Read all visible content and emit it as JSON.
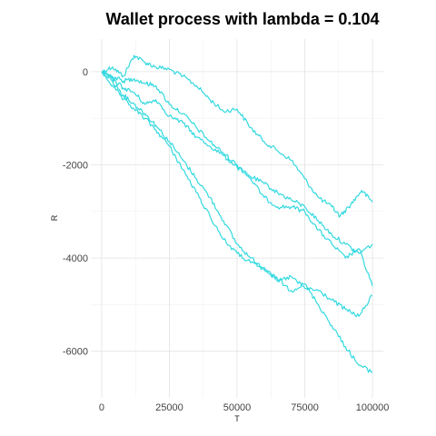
{
  "chart_data": {
    "type": "line",
    "title": "Wallet process with lambda =  0.104",
    "xlabel": "T",
    "ylabel": "R",
    "xlim": [
      -4000,
      104000
    ],
    "ylim": [
      -7000,
      700
    ],
    "xticks": [
      0,
      25000,
      50000,
      75000,
      100000
    ],
    "xtick_labels": [
      "0",
      "25000",
      "50000",
      "75000",
      "100000"
    ],
    "yticks": [
      0,
      -2000,
      -4000,
      -6000
    ],
    "ytick_labels": [
      "0",
      "-2000",
      "-4000",
      "-6000"
    ],
    "grid": true,
    "line_color": "#33d9e0",
    "series": [
      {
        "x": [
          0,
          4000,
          8000,
          12000,
          16000,
          20000,
          25000,
          30000,
          35000,
          40000,
          45000,
          50000,
          55000,
          60000,
          65000,
          70000,
          75000,
          80000,
          85000,
          88000,
          92000,
          96000,
          100000
        ],
        "values": [
          0,
          100,
          -100,
          350,
          200,
          100,
          50,
          -100,
          -300,
          -600,
          -850,
          -800,
          -1200,
          -1500,
          -1700,
          -1900,
          -2300,
          -2700,
          -2900,
          -3100,
          -2850,
          -2550,
          -2800
        ]
      },
      {
        "x": [
          0,
          4000,
          8000,
          12000,
          16000,
          20000,
          25000,
          30000,
          35000,
          40000,
          45000,
          50000,
          55000,
          60000,
          65000,
          70000,
          75000,
          80000,
          85000,
          90000,
          95000,
          100000
        ],
        "values": [
          0,
          -100,
          -200,
          -150,
          -250,
          -300,
          -700,
          -900,
          -1200,
          -1500,
          -1750,
          -2000,
          -2300,
          -2700,
          -2900,
          -2900,
          -3000,
          -3400,
          -3700,
          -4000,
          -3800,
          -4600
        ]
      },
      {
        "x": [
          0,
          4000,
          8000,
          12000,
          16000,
          20000,
          25000,
          30000,
          35000,
          40000,
          45000,
          50000,
          55000,
          60000,
          65000,
          70000,
          75000,
          80000,
          85000,
          90000,
          95000,
          100000
        ],
        "values": [
          0,
          -150,
          -350,
          -450,
          -700,
          -600,
          -950,
          -1100,
          -1400,
          -1600,
          -1800,
          -2050,
          -2250,
          -2400,
          -2600,
          -2750,
          -2900,
          -3200,
          -3500,
          -3700,
          -3900,
          -3700
        ]
      },
      {
        "x": [
          0,
          4000,
          8000,
          12000,
          16000,
          20000,
          25000,
          30000,
          35000,
          40000,
          45000,
          50000,
          55000,
          60000,
          65000,
          70000,
          75000,
          80000,
          85000,
          90000,
          95000,
          100000
        ],
        "values": [
          0,
          -200,
          -500,
          -700,
          -900,
          -1150,
          -1500,
          -1900,
          -2300,
          -2700,
          -3200,
          -3700,
          -4000,
          -4200,
          -4500,
          -4400,
          -4650,
          -4700,
          -4900,
          -5100,
          -5250,
          -4800
        ]
      },
      {
        "x": [
          0,
          4000,
          8000,
          12000,
          16000,
          20000,
          25000,
          30000,
          35000,
          40000,
          45000,
          50000,
          55000,
          60000,
          65000,
          70000,
          75000,
          80000,
          85000,
          90000,
          95000,
          100000
        ],
        "values": [
          0,
          -300,
          -600,
          -800,
          -1000,
          -1250,
          -1600,
          -2100,
          -2600,
          -3100,
          -3600,
          -3900,
          -4100,
          -4250,
          -4450,
          -4700,
          -4550,
          -5000,
          -5450,
          -5900,
          -6300,
          -6450
        ]
      }
    ]
  }
}
